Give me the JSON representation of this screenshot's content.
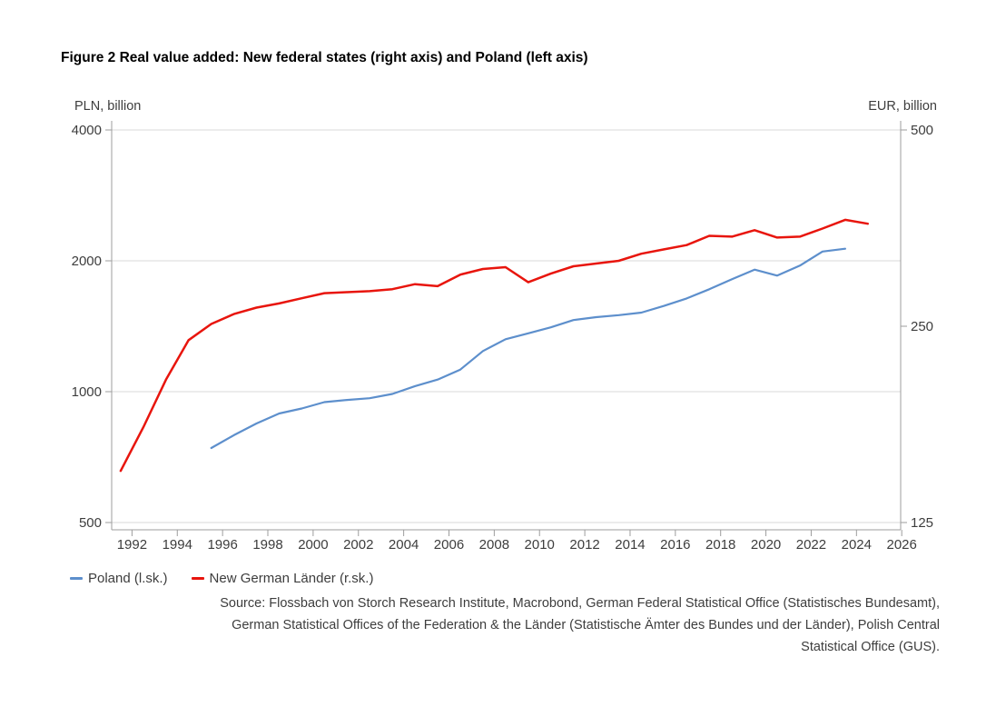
{
  "figure": {
    "title": "Figure 2 Real value added: New federal states (right axis) and Poland (left axis)",
    "source_lines": [
      "Source: Flossbach von Storch Research Institute, Macrobond, German Federal Statistical Office (Statistisches Bundesamt),",
      "German Statistical Offices of the Federation & the Länder (Statistische Ämter des Bundes und der Länder), Polish Central",
      "Statistical Office (GUS)."
    ]
  },
  "chart_data": {
    "type": "line",
    "title": "Figure 2 Real value added: New federal states (right axis) and Poland (left axis)",
    "grid": "horizontal-major-left-axis",
    "legend_position": "bottom-left",
    "colors": {
      "poland_blue": "#5d8fcc",
      "germany_red": "#e8150d",
      "gridline": "#d9d9d9",
      "axis": "#9d9d9d",
      "tick_label": "#3d3d3d"
    },
    "x_axis": {
      "tick_years": [
        1992,
        1994,
        1996,
        1998,
        2000,
        2002,
        2004,
        2006,
        2008,
        2010,
        2012,
        2014,
        2016,
        2018,
        2020,
        2022,
        2024,
        2026
      ],
      "range": [
        1991,
        2026
      ]
    },
    "left_axis": {
      "label": "PLN, billion",
      "scale": "log",
      "ticks": [
        4000,
        2000,
        1000,
        500
      ],
      "range": [
        500,
        4000
      ]
    },
    "right_axis": {
      "label": "EUR, billion",
      "scale": "log",
      "ticks": [
        500,
        250,
        125
      ],
      "range": [
        125,
        500
      ]
    },
    "series": [
      {
        "name": "Poland (l.sk.)",
        "axis": "left",
        "unit": "PLN billion",
        "color": "#5d8fcc",
        "start_year": 1995,
        "end_year": 2023,
        "values": [
          742,
          794,
          845,
          891,
          915,
          946,
          957,
          966,
          988,
          1030,
          1066,
          1124,
          1240,
          1320,
          1362,
          1406,
          1461,
          1484,
          1500,
          1520,
          1575,
          1639,
          1720,
          1814,
          1909,
          1849,
          1950,
          2101,
          2132
        ]
      },
      {
        "name": "New German Länder (r.sk.)",
        "axis": "right",
        "unit": "EUR billion",
        "color": "#e8150d",
        "start_year": 1991,
        "end_year": 2024,
        "values": [
          150,
          175,
          207,
          238,
          252,
          261,
          267,
          271,
          276,
          281,
          282,
          283,
          285,
          290,
          288,
          300,
          306,
          308,
          292,
          301,
          309,
          312,
          315,
          323,
          328,
          333,
          344,
          343,
          351,
          342,
          343,
          353,
          364,
          359
        ]
      }
    ]
  }
}
